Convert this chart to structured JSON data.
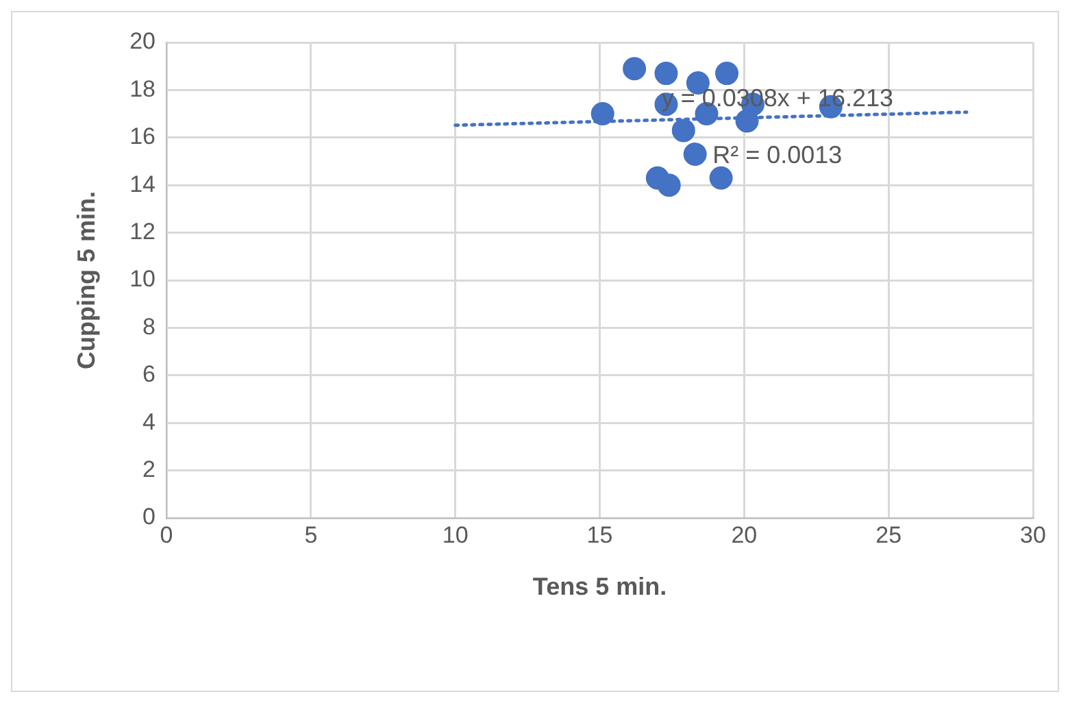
{
  "chart_data": {
    "type": "scatter",
    "xlabel": "Tens 5 min.",
    "ylabel": "Cupping 5 min.",
    "xlim": [
      0,
      30
    ],
    "xticks": [
      0,
      5,
      10,
      15,
      20,
      25,
      30
    ],
    "ylim": [
      0,
      20
    ],
    "yticks": [
      0,
      2,
      4,
      6,
      8,
      10,
      12,
      14,
      16,
      18,
      20
    ],
    "grid": true,
    "legend": false,
    "marker": "circle",
    "series": [
      {
        "type": "scatter",
        "color": "#4472c4",
        "x": [
          16.2,
          17.3,
          18.4,
          19.4,
          17.3,
          15.1,
          18.7,
          20.3,
          20.1,
          17.9,
          23.0,
          18.3,
          17.0,
          17.4,
          19.2
        ],
        "values": [
          18.9,
          18.7,
          18.3,
          18.7,
          17.4,
          17.0,
          17.0,
          17.4,
          16.7,
          16.3,
          17.3,
          15.3,
          14.3,
          14.0,
          14.3
        ]
      },
      {
        "type": "line",
        "color": "#4472c4",
        "line_style": "dotted",
        "marker": "none",
        "x": [
          10,
          27.7
        ],
        "values": [
          16.52,
          17.07
        ]
      }
    ],
    "annotations": [
      "y = 0.0308x + 16.213",
      "R² = 0.0013"
    ]
  }
}
